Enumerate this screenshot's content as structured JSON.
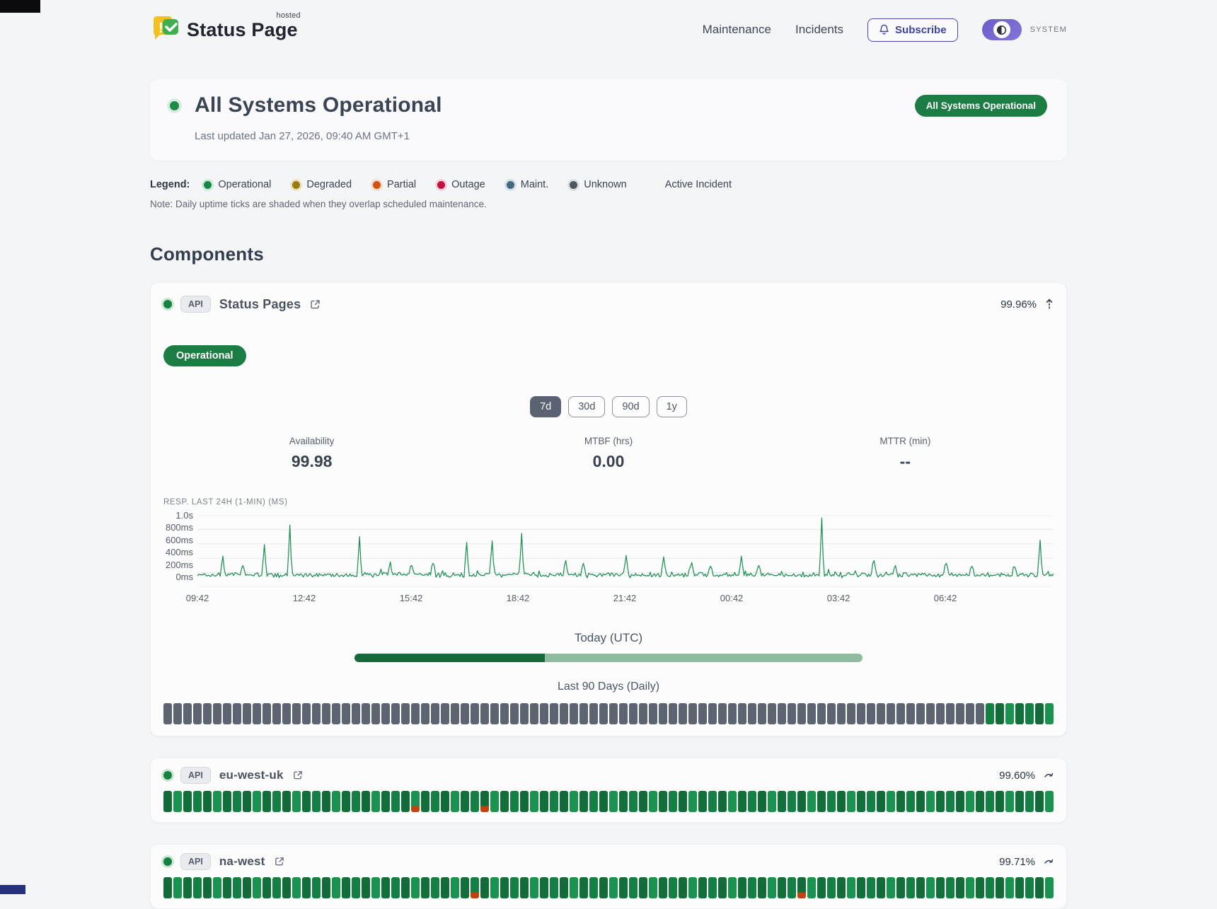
{
  "header": {
    "brand_name": "Status Page",
    "brand_superscript": "hosted",
    "nav": [
      {
        "label": "Maintenance"
      },
      {
        "label": "Incidents"
      }
    ],
    "subscribe_label": "Subscribe",
    "theme_toggle_label": "SYSTEM"
  },
  "hero": {
    "title": "All Systems Operational",
    "last_updated": "Last updated Jan 27, 2026, 09:40 AM GMT+1",
    "badge": "All Systems Operational",
    "status_color": "#1d8a47"
  },
  "legend": {
    "label": "Legend:",
    "items": [
      {
        "label": "Operational",
        "color": "#178746",
        "ring": "#cdeada"
      },
      {
        "label": "Degraded",
        "color": "#9c7a10",
        "ring": "#ece3c2"
      },
      {
        "label": "Partial",
        "color": "#cf5412",
        "ring": "#f4ddcd"
      },
      {
        "label": "Outage",
        "color": "#bf1242",
        "ring": "#f2d2dc"
      },
      {
        "label": "Maint.",
        "color": "#43697f",
        "ring": "#d3e0e7"
      },
      {
        "label": "Unknown",
        "color": "#4e565e",
        "ring": "#dcdfe2"
      }
    ],
    "extra": "Active Incident",
    "note": "Note: Daily uptime ticks are shaded when they overlap scheduled maintenance."
  },
  "components_title": "Components",
  "component_main": {
    "type_badge": "API",
    "name": "Status Pages",
    "uptime": "99.96%",
    "status_badge": "Operational",
    "ranges": [
      {
        "label": "7d",
        "active": true
      },
      {
        "label": "30d",
        "active": false
      },
      {
        "label": "90d",
        "active": false
      },
      {
        "label": "1y",
        "active": false
      }
    ],
    "stats": [
      {
        "label": "Availability",
        "value": "99.98"
      },
      {
        "label": "MTBF (hrs)",
        "value": "0.00"
      },
      {
        "label": "MTTR (min)",
        "value": "--"
      }
    ],
    "today_label": "Today (UTC)",
    "today_progress": {
      "segments": [
        {
          "pct": 37.4,
          "color": "#15693b"
        },
        {
          "pct": 62.6,
          "color": "#8fbb9e"
        }
      ]
    },
    "ninety_label": "Last 90 Days (Daily)",
    "ticks": {
      "segments": [
        {
          "status": "unknown",
          "count": 83
        },
        {
          "status": "operational",
          "count": 7
        }
      ],
      "partial_indices": []
    }
  },
  "chart_data": {
    "type": "line",
    "title": "RESP. LAST 24H (1-MIN) (MS)",
    "x_ticks": [
      "09:42",
      "12:42",
      "15:42",
      "18:42",
      "21:42",
      "00:42",
      "03:42",
      "06:42"
    ],
    "y_ticks": [
      {
        "label": "1.0s",
        "value": 1000
      },
      {
        "label": "800ms",
        "value": 800
      },
      {
        "label": "600ms",
        "value": 600
      },
      {
        "label": "400ms",
        "value": 400
      },
      {
        "label": "200ms",
        "value": 200
      },
      {
        "label": "0ms",
        "value": 0
      }
    ],
    "ylim": [
      0,
      1000
    ],
    "grid": true,
    "line_color": "#1f9155",
    "baseline_ms": 170,
    "noise_ms": 42,
    "spikes": [
      {
        "x": 0.03,
        "ms": 430
      },
      {
        "x": 0.053,
        "ms": 300
      },
      {
        "x": 0.078,
        "ms": 590
      },
      {
        "x": 0.108,
        "ms": 860
      },
      {
        "x": 0.19,
        "ms": 700
      },
      {
        "x": 0.225,
        "ms": 350
      },
      {
        "x": 0.25,
        "ms": 300
      },
      {
        "x": 0.275,
        "ms": 330
      },
      {
        "x": 0.315,
        "ms": 620
      },
      {
        "x": 0.345,
        "ms": 640
      },
      {
        "x": 0.378,
        "ms": 745
      },
      {
        "x": 0.43,
        "ms": 370
      },
      {
        "x": 0.45,
        "ms": 330
      },
      {
        "x": 0.5,
        "ms": 440
      },
      {
        "x": 0.545,
        "ms": 420
      },
      {
        "x": 0.578,
        "ms": 340
      },
      {
        "x": 0.6,
        "ms": 290
      },
      {
        "x": 0.635,
        "ms": 430
      },
      {
        "x": 0.655,
        "ms": 300
      },
      {
        "x": 0.73,
        "ms": 960
      },
      {
        "x": 0.79,
        "ms": 370
      },
      {
        "x": 0.815,
        "ms": 300
      },
      {
        "x": 0.875,
        "ms": 330
      },
      {
        "x": 0.905,
        "ms": 290
      },
      {
        "x": 0.955,
        "ms": 280
      },
      {
        "x": 0.985,
        "ms": 650
      }
    ]
  },
  "regions": [
    {
      "type_badge": "API",
      "name": "eu-west-uk",
      "uptime": "99.60%",
      "ticks": {
        "segments": [
          {
            "status": "operational",
            "count": 90
          }
        ],
        "partial_indices": [
          25,
          32
        ]
      }
    },
    {
      "type_badge": "API",
      "name": "na-west",
      "uptime": "99.71%",
      "ticks": {
        "segments": [
          {
            "status": "operational",
            "count": 90
          }
        ],
        "partial_indices": [
          31,
          64
        ]
      }
    }
  ],
  "colors": {
    "accent_green": "#1b7c44",
    "indigo": "#4349ad",
    "toggle_purple": "#7265cf",
    "tick_greens": [
      "#158044",
      "#11703a",
      "#19934f",
      "#136c38"
    ],
    "tick_unknown": "#5d6471",
    "tick_partial_red": "#c2410c",
    "progress_dark": "#15693b",
    "progress_light": "#8fbb9e"
  }
}
